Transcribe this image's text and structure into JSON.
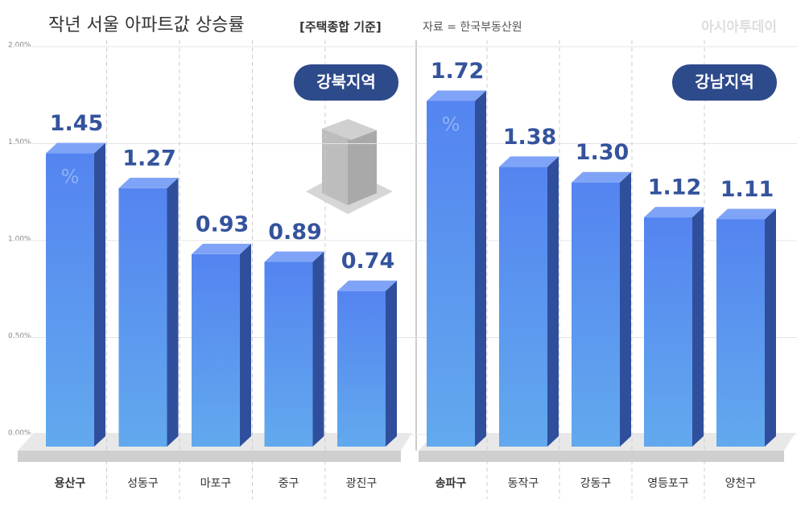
{
  "header": {
    "title": "작년 서울 아파트값 상승률",
    "subtitle": "[주택종합 기준]",
    "source": "자료 = 한국부동산원",
    "brand": "아시아투데이"
  },
  "chart_data": [
    {
      "type": "bar3d",
      "region": "강북지역",
      "unit_label": "%",
      "categories": [
        "용산구",
        "성동구",
        "마포구",
        "중구",
        "광진구"
      ],
      "values": [
        1.45,
        1.27,
        0.93,
        0.89,
        0.74
      ],
      "value_labels": [
        "1.45",
        "1.27",
        "0.93",
        "0.89",
        "0.74"
      ],
      "color": "#5a8ef2",
      "ylim": [
        0,
        2
      ],
      "yticks": [
        {
          "value": 0,
          "label": "0.00%"
        },
        {
          "value": 0.5,
          "label": "0.50%"
        },
        {
          "value": 1,
          "label": "1.00%"
        },
        {
          "value": 1.5,
          "label": "1.50%"
        },
        {
          "value": 2,
          "label": "2.00%"
        }
      ],
      "grid": true
    },
    {
      "type": "bar3d",
      "region": "강남지역",
      "unit_label": "%",
      "categories": [
        "송파구",
        "동작구",
        "강동구",
        "영등포구",
        "양천구"
      ],
      "values": [
        1.72,
        1.38,
        1.3,
        1.12,
        1.11
      ],
      "value_labels": [
        "1.72",
        "1.38",
        "1.30",
        "1.12",
        "1.11"
      ],
      "color": "#5a8ef2",
      "ylim": [
        0,
        2
      ]
    }
  ]
}
